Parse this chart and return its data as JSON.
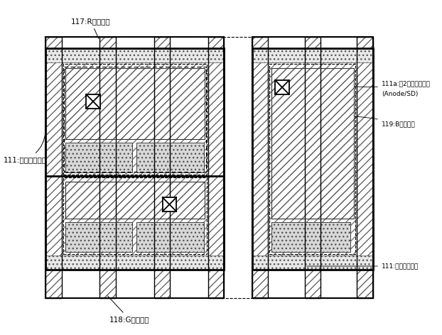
{
  "fig_width": 6.22,
  "fig_height": 4.72,
  "dpi": 100,
  "bg_color": "#ffffff",
  "labels": {
    "top_label": "117:R発光領域",
    "bottom_label": "118:G発光領域",
    "right_label1": "111a:第2コンタクト部",
    "right_label1b": "(Anode/SD)",
    "right_label2": "119:B発光領域",
    "left_label": "111:アノード電極",
    "bot_right_label": "111:アノード電極"
  }
}
